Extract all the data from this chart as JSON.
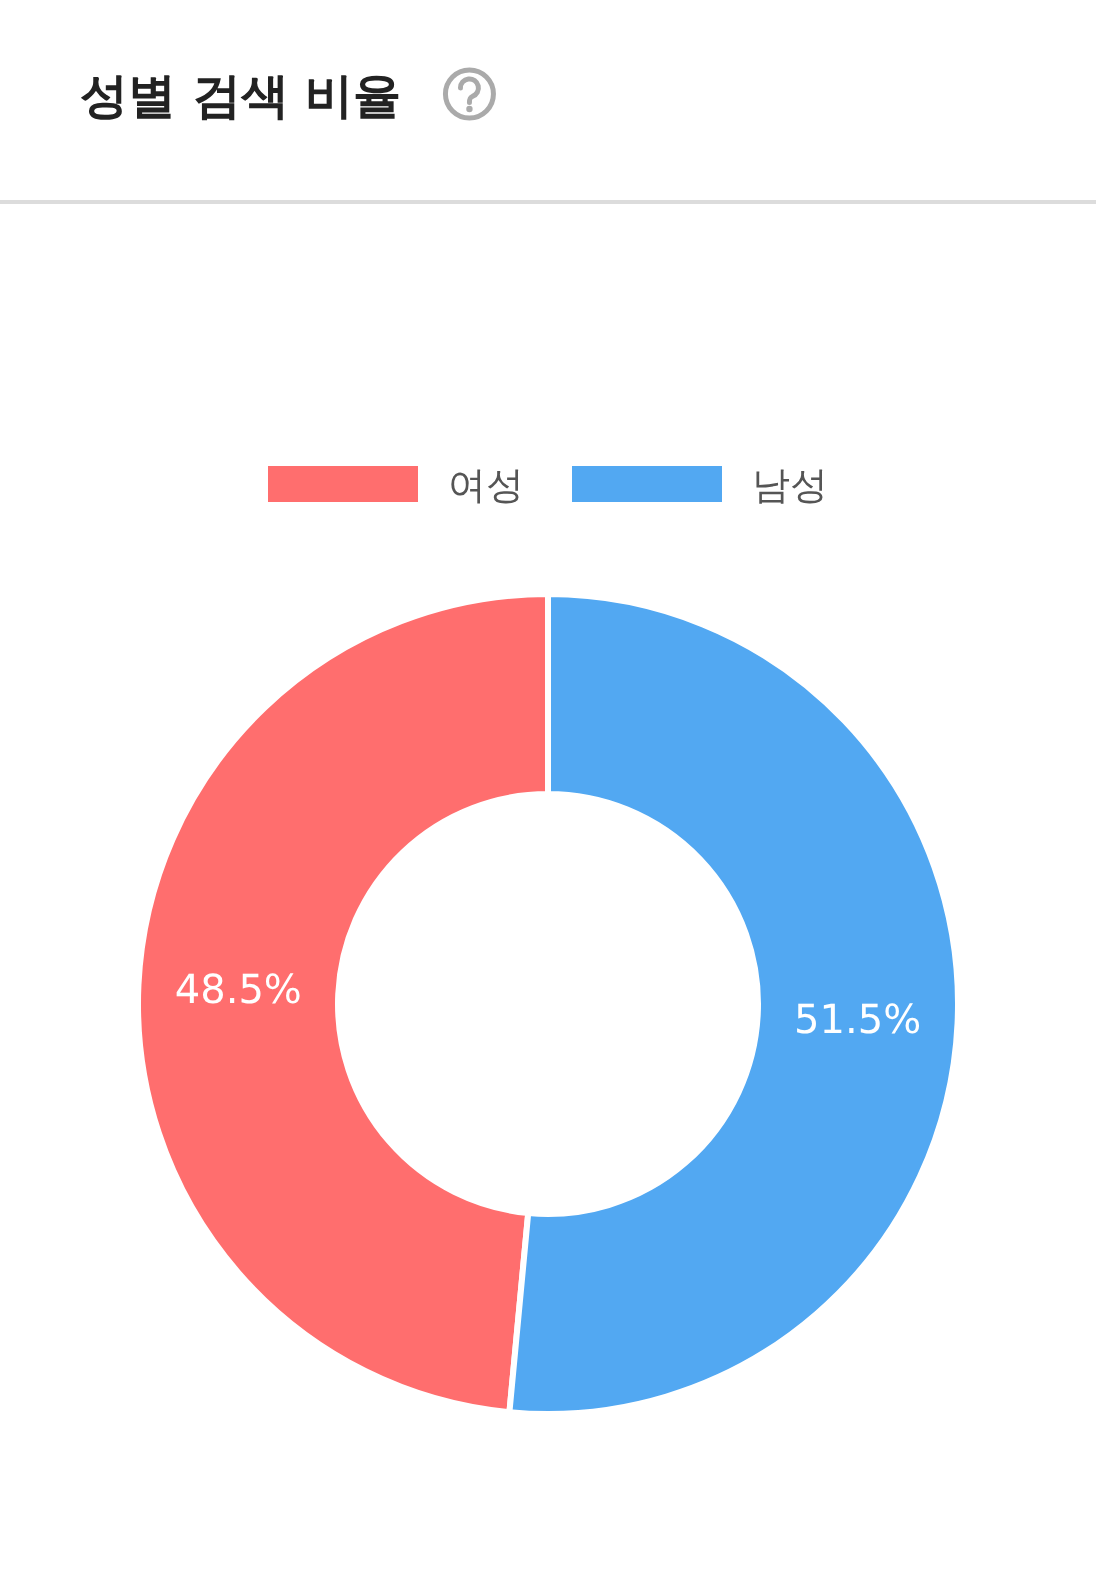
{
  "chart_data": {
    "type": "donut",
    "title": "성별 검색 비율",
    "categories": [
      "여성",
      "남성"
    ],
    "values": [
      48.5,
      51.5
    ],
    "colors": [
      "#ff6e6e",
      "#52a8f2"
    ],
    "value_labels": [
      "48.5%",
      "51.5%"
    ],
    "legend": "top"
  }
}
